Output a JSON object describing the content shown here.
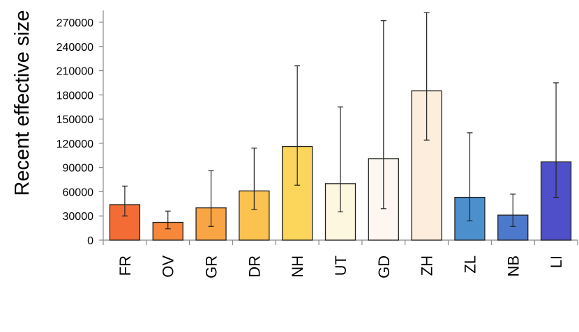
{
  "chart_data": {
    "type": "bar",
    "title": "",
    "xlabel": "",
    "ylabel": "Recent effective size",
    "ylim": [
      0,
      283000
    ],
    "yticks": [
      0,
      30000,
      60000,
      90000,
      120000,
      150000,
      180000,
      210000,
      240000,
      270000
    ],
    "yticklabels": [
      "0",
      "30000",
      "60000",
      "90000",
      "120000",
      "150000",
      "180000",
      "210000",
      "240000",
      "270000"
    ],
    "grid": false,
    "legend": "none",
    "categories": [
      "FR",
      "OV",
      "GR",
      "DR",
      "NH",
      "UT",
      "GD",
      "ZH",
      "ZL",
      "NB",
      "LI"
    ],
    "values": [
      44000,
      22000,
      40000,
      61000,
      116000,
      70000,
      101000,
      185000,
      53000,
      31000,
      97000
    ],
    "error_low": [
      30000,
      14000,
      17000,
      38000,
      68000,
      35000,
      39000,
      124000,
      24000,
      17000,
      53000
    ],
    "error_high": [
      67000,
      36000,
      86000,
      114000,
      216000,
      165000,
      272000,
      282000,
      133000,
      57000,
      195000
    ],
    "colors": [
      "#f36c35",
      "#f7883a",
      "#f9a545",
      "#fbc24f",
      "#fbd65a",
      "#fef7e0",
      "#fdf6f1",
      "#fdeddc",
      "#4c8fcd",
      "#4d79cc",
      "#4f4fc9"
    ]
  }
}
